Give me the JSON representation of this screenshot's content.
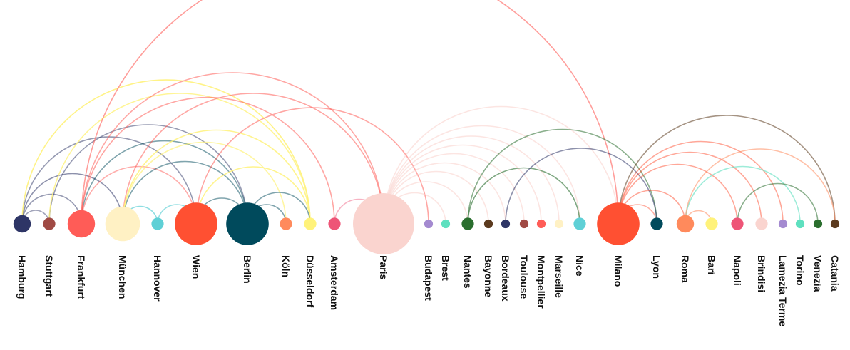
{
  "chart_data": {
    "type": "arc",
    "nodes": [
      {
        "id": "hamburg",
        "label": "Hamburg",
        "color": "#2e3566",
        "size": 4
      },
      {
        "id": "stuttgart",
        "label": "Stuttgart",
        "color": "#a04a44",
        "size": 2
      },
      {
        "id": "frankfurt",
        "label": "Frankfurt",
        "color": "#ff5c57",
        "size": 10
      },
      {
        "id": "munchen",
        "label": "München",
        "color": "#fff1c4",
        "size": 16
      },
      {
        "id": "hannover",
        "label": "Hannover",
        "color": "#5fd0d6",
        "size": 2
      },
      {
        "id": "wien",
        "label": "Wien",
        "color": "#ff5032",
        "size": 24
      },
      {
        "id": "berlin",
        "label": "Berlin",
        "color": "#004a5c",
        "size": 24
      },
      {
        "id": "koln",
        "label": "Köln",
        "color": "#ff8a5c",
        "size": 2
      },
      {
        "id": "dusseldorf",
        "label": "Düsseldorf",
        "color": "#fff27a",
        "size": 2
      },
      {
        "id": "amsterdam",
        "label": "Amsterdam",
        "color": "#ee5577",
        "size": 2
      },
      {
        "id": "paris",
        "label": "Paris",
        "color": "#fad4cf",
        "size": 50
      },
      {
        "id": "budapest",
        "label": "Budapest",
        "color": "#a48ad0",
        "size": 1
      },
      {
        "id": "brest",
        "label": "Brest",
        "color": "#5ee0bf",
        "size": 1
      },
      {
        "id": "nantes",
        "label": "Nantes",
        "color": "#2a6e2e",
        "size": 2
      },
      {
        "id": "bayonne",
        "label": "Bayonne",
        "color": "#5b3a1e",
        "size": 1
      },
      {
        "id": "bordeaux",
        "label": "Bordeaux",
        "color": "#2e3566",
        "size": 1
      },
      {
        "id": "toulouse",
        "label": "Toulouse",
        "color": "#a04a44",
        "size": 1
      },
      {
        "id": "montpellier",
        "label": "Montpellier",
        "color": "#ff5c57",
        "size": 1
      },
      {
        "id": "marseille",
        "label": "Marseille",
        "color": "#fff1c4",
        "size": 1
      },
      {
        "id": "nice",
        "label": "Nice",
        "color": "#5fd0d6",
        "size": 2
      },
      {
        "id": "milano",
        "label": "Milano",
        "color": "#ff5032",
        "size": 24
      },
      {
        "id": "lyon",
        "label": "Lyon",
        "color": "#004a5c",
        "size": 2
      },
      {
        "id": "roma",
        "label": "Roma",
        "color": "#ff8a5c",
        "size": 4
      },
      {
        "id": "bari",
        "label": "Bari",
        "color": "#fff27a",
        "size": 2
      },
      {
        "id": "napoli",
        "label": "Napoli",
        "color": "#ee5577",
        "size": 2
      },
      {
        "id": "brindisi",
        "label": "Brindisi",
        "color": "#fad4cf",
        "size": 2
      },
      {
        "id": "lamezia",
        "label": "Lamezia Terme",
        "color": "#a48ad0",
        "size": 1
      },
      {
        "id": "torino",
        "label": "Torino",
        "color": "#5ee0bf",
        "size": 1
      },
      {
        "id": "venezia",
        "label": "Venezia",
        "color": "#2a6e2e",
        "size": 1
      },
      {
        "id": "catania",
        "label": "Catania",
        "color": "#5b3a1e",
        "size": 1
      }
    ],
    "links": [
      {
        "source": "hamburg",
        "target": "stuttgart",
        "color": "#2e3566",
        "opacity": 0.45
      },
      {
        "source": "hamburg",
        "target": "frankfurt",
        "color": "#2e3566",
        "opacity": 0.5
      },
      {
        "source": "hamburg",
        "target": "wien",
        "color": "#2e3566",
        "opacity": 0.5
      },
      {
        "source": "hamburg",
        "target": "munchen",
        "color": "#2e3566",
        "opacity": 0.55
      },
      {
        "source": "hamburg",
        "target": "dusseldorf",
        "color": "#fff27a",
        "opacity": 0.9
      },
      {
        "source": "stuttgart",
        "target": "berlin",
        "color": "#2e3566",
        "opacity": 0.5
      },
      {
        "source": "stuttgart",
        "target": "dusseldorf",
        "color": "#fff27a",
        "opacity": 0.8
      },
      {
        "source": "frankfurt",
        "target": "berlin",
        "color": "#004a5c",
        "opacity": 0.5
      },
      {
        "source": "frankfurt",
        "target": "wien",
        "color": "#ff5c57",
        "opacity": 0.5
      },
      {
        "source": "frankfurt",
        "target": "amsterdam",
        "color": "#ff5c57",
        "opacity": 0.55
      },
      {
        "source": "frankfurt",
        "target": "paris",
        "color": "#ff5c57",
        "opacity": 0.55
      },
      {
        "source": "munchen",
        "target": "berlin",
        "color": "#004a5c",
        "opacity": 0.5
      },
      {
        "source": "munchen",
        "target": "hannover",
        "color": "#5fd0d6",
        "opacity": 0.7
      },
      {
        "source": "munchen",
        "target": "paris",
        "color": "#ff5c57",
        "opacity": 0.55
      },
      {
        "source": "munchen",
        "target": "dusseldorf",
        "color": "#fff27a",
        "opacity": 0.85
      },
      {
        "source": "munchen",
        "target": "koln",
        "color": "#fff27a",
        "opacity": 0.7
      },
      {
        "source": "hannover",
        "target": "wien",
        "color": "#5fd0d6",
        "opacity": 0.65
      },
      {
        "source": "wien",
        "target": "berlin",
        "color": "#004a5c",
        "opacity": 0.5
      },
      {
        "source": "wien",
        "target": "dusseldorf",
        "color": "#fff27a",
        "opacity": 0.85
      },
      {
        "source": "wien",
        "target": "budapest",
        "color": "#ff5c57",
        "opacity": 0.55
      },
      {
        "source": "berlin",
        "target": "koln",
        "color": "#004a5c",
        "opacity": 0.5
      },
      {
        "source": "berlin",
        "target": "dusseldorf",
        "color": "#004a5c",
        "opacity": 0.5
      },
      {
        "source": "frankfurt",
        "target": "milano",
        "color": "#ff5c57",
        "opacity": 0.6
      },
      {
        "source": "amsterdam",
        "target": "paris",
        "color": "#ee5577",
        "opacity": 0.45
      },
      {
        "source": "paris",
        "target": "brest",
        "color": "#fad4cf",
        "opacity": 0.6
      },
      {
        "source": "paris",
        "target": "nantes",
        "color": "#fad4cf",
        "opacity": 0.6
      },
      {
        "source": "paris",
        "target": "bayonne",
        "color": "#fad4cf",
        "opacity": 0.6
      },
      {
        "source": "paris",
        "target": "bordeaux",
        "color": "#fad4cf",
        "opacity": 0.6
      },
      {
        "source": "paris",
        "target": "toulouse",
        "color": "#fad4cf",
        "opacity": 0.6
      },
      {
        "source": "paris",
        "target": "montpellier",
        "color": "#fad4cf",
        "opacity": 0.6
      },
      {
        "source": "paris",
        "target": "marseille",
        "color": "#fad4cf",
        "opacity": 0.6
      },
      {
        "source": "paris",
        "target": "nice",
        "color": "#fad4cf",
        "opacity": 0.6
      },
      {
        "source": "paris",
        "target": "milano",
        "color": "#fad4cf",
        "opacity": 0.6
      },
      {
        "source": "nantes",
        "target": "nice",
        "color": "#2a6e2e",
        "opacity": 0.6
      },
      {
        "source": "nantes",
        "target": "lyon",
        "color": "#2a6e2e",
        "opacity": 0.55
      },
      {
        "source": "bordeaux",
        "target": "lyon",
        "color": "#2e3566",
        "opacity": 0.55
      },
      {
        "source": "milano",
        "target": "lyon",
        "color": "#ff5032",
        "opacity": 0.45
      },
      {
        "source": "milano",
        "target": "roma",
        "color": "#ff5032",
        "opacity": 0.5
      },
      {
        "source": "milano",
        "target": "napoli",
        "color": "#ff5032",
        "opacity": 0.5
      },
      {
        "source": "milano",
        "target": "brindisi",
        "color": "#ff5032",
        "opacity": 0.5
      },
      {
        "source": "milano",
        "target": "lamezia",
        "color": "#ff5032",
        "opacity": 0.5
      },
      {
        "source": "milano",
        "target": "catania",
        "color": "#5b3a1e",
        "opacity": 0.55
      },
      {
        "source": "roma",
        "target": "bari",
        "color": "#ff8a5c",
        "opacity": 0.55
      },
      {
        "source": "roma",
        "target": "torino",
        "color": "#5ee0bf",
        "opacity": 0.6
      },
      {
        "source": "roma",
        "target": "catania",
        "color": "#ff8a5c",
        "opacity": 0.55
      },
      {
        "source": "napoli",
        "target": "venezia",
        "color": "#2a6e2e",
        "opacity": 0.55
      }
    ]
  }
}
